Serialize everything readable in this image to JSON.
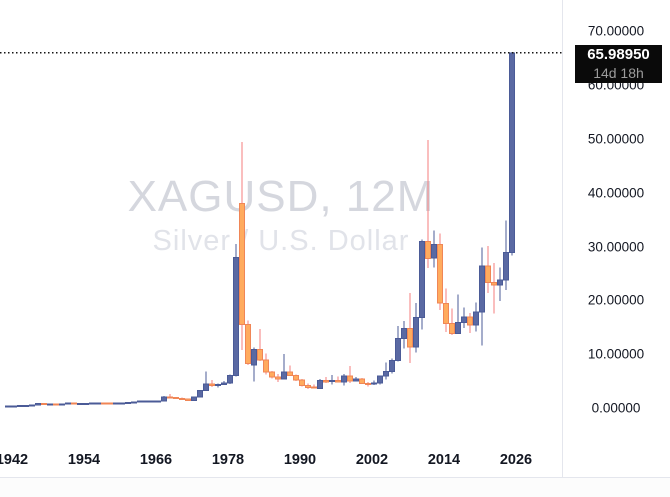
{
  "watermark": {
    "symbol_text": "XAGUSD, 12M",
    "description": "Silver / U.S. Dollar"
  },
  "price_label": {
    "value": "65.98950",
    "countdown": "14d 18h"
  },
  "price_axis": {
    "ticks": [
      {
        "value": 70,
        "label": "70.00000"
      },
      {
        "value": 60,
        "label": "60.00000"
      },
      {
        "value": 50,
        "label": "50.00000"
      },
      {
        "value": 40,
        "label": "40.00000"
      },
      {
        "value": 30,
        "label": "30.00000"
      },
      {
        "value": 20,
        "label": "20.00000"
      },
      {
        "value": 10,
        "label": "10.00000"
      },
      {
        "value": 0,
        "label": "0.00000"
      }
    ]
  },
  "time_axis": {
    "ticks": [
      {
        "year": 1942,
        "label": "1942"
      },
      {
        "year": 1954,
        "label": "1954"
      },
      {
        "year": 1966,
        "label": "1966"
      },
      {
        "year": 1978,
        "label": "1978"
      },
      {
        "year": 1990,
        "label": "1990"
      },
      {
        "year": 2002,
        "label": "2002"
      },
      {
        "year": 2014,
        "label": "2014"
      },
      {
        "year": 2026,
        "label": "2026"
      }
    ]
  },
  "colors": {
    "up_fill": "#5a69a3",
    "up_border": "#4b5b97",
    "up_wick": "#4b5b97",
    "down_fill": "#ffab5e",
    "down_border": "#f08656",
    "down_wick": "#f57d7d",
    "price_line": "#151515",
    "tag_bg": "#0a0a0a",
    "tag_text": "#ffffff",
    "tag_sub": "#9c9c9c",
    "axis_text": "#131722",
    "pane_border": "#e4e6ed",
    "watermark_line1": "#d5d7de",
    "watermark_line2": "#e1e3e9"
  },
  "chart_data": {
    "type": "candlestick",
    "title": "XAGUSD, 12M",
    "subtitle": "Silver / U.S. Dollar",
    "symbol": "XAGUSD",
    "timeframe": "12M",
    "last_price": 65.9895,
    "ylim": [
      0,
      70
    ],
    "y_ticks": [
      0,
      10,
      20,
      30,
      40,
      50,
      60,
      70
    ],
    "x_tick_years": [
      1942,
      1954,
      1966,
      1978,
      1990,
      2002,
      2014,
      2026
    ],
    "x_range_years": [
      1941,
      2026
    ],
    "grid": false,
    "legend": false,
    "columns": [
      "year",
      "open",
      "high",
      "low",
      "close"
    ],
    "rows": [
      [
        1941,
        0.35,
        0.36,
        0.34,
        0.35
      ],
      [
        1942,
        0.35,
        0.39,
        0.34,
        0.38
      ],
      [
        1943,
        0.38,
        0.45,
        0.37,
        0.45
      ],
      [
        1944,
        0.45,
        0.46,
        0.44,
        0.45
      ],
      [
        1945,
        0.45,
        0.53,
        0.44,
        0.52
      ],
      [
        1946,
        0.52,
        0.9,
        0.51,
        0.8
      ],
      [
        1947,
        0.8,
        0.87,
        0.7,
        0.72
      ],
      [
        1948,
        0.72,
        0.78,
        0.7,
        0.74
      ],
      [
        1949,
        0.74,
        0.76,
        0.69,
        0.72
      ],
      [
        1950,
        0.72,
        0.8,
        0.71,
        0.74
      ],
      [
        1951,
        0.74,
        0.92,
        0.73,
        0.89
      ],
      [
        1952,
        0.89,
        0.9,
        0.83,
        0.85
      ],
      [
        1953,
        0.85,
        0.87,
        0.84,
        0.85
      ],
      [
        1954,
        0.85,
        0.86,
        0.84,
        0.85
      ],
      [
        1955,
        0.85,
        0.91,
        0.84,
        0.89
      ],
      [
        1956,
        0.89,
        0.92,
        0.88,
        0.91
      ],
      [
        1957,
        0.91,
        0.92,
        0.89,
        0.9
      ],
      [
        1958,
        0.9,
        0.91,
        0.88,
        0.89
      ],
      [
        1959,
        0.89,
        0.93,
        0.88,
        0.91
      ],
      [
        1960,
        0.91,
        0.92,
        0.9,
        0.91
      ],
      [
        1961,
        0.91,
        1.05,
        0.9,
        1.04
      ],
      [
        1962,
        1.04,
        1.1,
        1.01,
        1.09
      ],
      [
        1963,
        1.09,
        1.3,
        1.08,
        1.29
      ],
      [
        1964,
        1.29,
        1.3,
        1.28,
        1.29
      ],
      [
        1965,
        1.29,
        1.31,
        1.28,
        1.29
      ],
      [
        1966,
        1.29,
        1.32,
        1.28,
        1.3
      ],
      [
        1967,
        1.3,
        2.2,
        1.28,
        2.06
      ],
      [
        1968,
        2.06,
        2.56,
        1.8,
        1.95
      ],
      [
        1969,
        1.95,
        2.05,
        1.7,
        1.79
      ],
      [
        1970,
        1.79,
        1.95,
        1.57,
        1.63
      ],
      [
        1971,
        1.63,
        1.75,
        1.27,
        1.39
      ],
      [
        1972,
        1.39,
        2.05,
        1.37,
        2.03
      ],
      [
        1973,
        2.03,
        3.3,
        1.96,
        3.26
      ],
      [
        1974,
        3.26,
        6.76,
        3.2,
        4.47
      ],
      [
        1975,
        4.47,
        5.23,
        3.93,
        4.19
      ],
      [
        1976,
        4.19,
        4.55,
        3.83,
        4.35
      ],
      [
        1977,
        4.35,
        4.98,
        4.31,
        4.62
      ],
      [
        1978,
        4.62,
        6.26,
        4.5,
        6.02
      ],
      [
        1979,
        6.02,
        30.5,
        5.9,
        28.0
      ],
      [
        1980,
        38.0,
        49.45,
        10.8,
        15.5
      ],
      [
        1981,
        15.5,
        16.3,
        7.95,
        8.25
      ],
      [
        1982,
        8.0,
        11.25,
        4.9,
        10.87
      ],
      [
        1983,
        10.87,
        14.72,
        8.7,
        8.9
      ],
      [
        1984,
        8.9,
        10.11,
        6.22,
        6.7
      ],
      [
        1985,
        6.7,
        6.9,
        5.45,
        5.8
      ],
      [
        1986,
        5.8,
        6.3,
        4.85,
        5.4
      ],
      [
        1987,
        5.4,
        10.0,
        5.3,
        6.7
      ],
      [
        1988,
        6.7,
        7.9,
        6.0,
        6.05
      ],
      [
        1989,
        6.05,
        6.21,
        5.03,
        5.22
      ],
      [
        1990,
        5.22,
        5.36,
        3.95,
        4.19
      ],
      [
        1991,
        4.19,
        4.57,
        3.55,
        3.86
      ],
      [
        1992,
        3.86,
        4.34,
        3.64,
        3.67
      ],
      [
        1993,
        3.67,
        5.42,
        3.52,
        5.12
      ],
      [
        1994,
        5.12,
        5.78,
        4.64,
        4.88
      ],
      [
        1995,
        4.88,
        6.1,
        4.38,
        5.14
      ],
      [
        1996,
        5.14,
        5.82,
        4.71,
        4.8
      ],
      [
        1997,
        4.8,
        6.31,
        4.22,
        5.95
      ],
      [
        1998,
        5.95,
        7.81,
        4.62,
        5.03
      ],
      [
        1999,
        5.03,
        5.79,
        4.88,
        5.41
      ],
      [
        2000,
        5.41,
        5.6,
        4.56,
        4.57
      ],
      [
        2001,
        4.57,
        4.82,
        4.03,
        4.52
      ],
      [
        2002,
        4.52,
        5.13,
        4.24,
        4.67
      ],
      [
        2003,
        4.67,
        6.0,
        4.35,
        5.97
      ],
      [
        2004,
        5.97,
        8.5,
        5.34,
        6.81
      ],
      [
        2005,
        6.81,
        9.23,
        6.39,
        8.83
      ],
      [
        2006,
        8.83,
        15.22,
        8.68,
        12.9
      ],
      [
        2007,
        12.9,
        16.2,
        11.06,
        14.76
      ],
      [
        2008,
        14.76,
        21.35,
        8.4,
        11.3
      ],
      [
        2009,
        11.3,
        19.5,
        10.3,
        16.85
      ],
      [
        2010,
        16.85,
        31.28,
        14.62,
        30.92
      ],
      [
        2011,
        30.92,
        49.8,
        26.02,
        27.84
      ],
      [
        2012,
        27.84,
        33.0,
        26.1,
        30.35
      ],
      [
        2013,
        30.35,
        32.48,
        18.2,
        19.47
      ],
      [
        2014,
        19.47,
        22.18,
        14.1,
        15.71
      ],
      [
        2015,
        15.71,
        18.5,
        13.6,
        13.82
      ],
      [
        2016,
        13.82,
        21.13,
        13.75,
        15.92
      ],
      [
        2017,
        15.92,
        18.65,
        14.85,
        16.94
      ],
      [
        2018,
        16.94,
        17.7,
        13.9,
        15.47
      ],
      [
        2019,
        15.47,
        19.65,
        14.26,
        17.85
      ],
      [
        2020,
        17.85,
        29.86,
        11.62,
        26.4
      ],
      [
        2021,
        26.4,
        30.1,
        21.41,
        23.31
      ],
      [
        2022,
        23.31,
        26.94,
        17.54,
        22.9
      ],
      [
        2023,
        22.9,
        26.14,
        19.9,
        23.79
      ],
      [
        2024,
        23.79,
        34.87,
        21.93,
        28.9
      ],
      [
        2025,
        28.9,
        66.2,
        28.3,
        65.99
      ]
    ]
  }
}
